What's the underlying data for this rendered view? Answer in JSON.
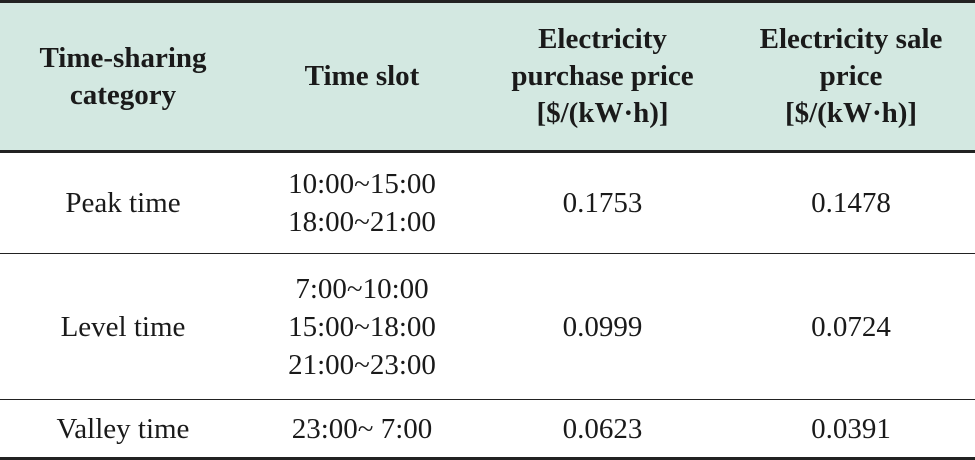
{
  "table": {
    "headers": [
      [
        "Time-sharing",
        "category"
      ],
      [
        "Time slot"
      ],
      [
        "Electricity",
        "purchase price",
        "[$/(kW·h)]"
      ],
      [
        "Electricity sale",
        "price",
        "[$/(kW·h)]"
      ]
    ],
    "rows": [
      {
        "category": "Peak time",
        "slots": [
          "10:00~15:00",
          "18:00~21:00"
        ],
        "purchase_price": "0.1753",
        "sale_price": "0.1478"
      },
      {
        "category": "Level time",
        "slots": [
          "7:00~10:00",
          "15:00~18:00",
          "21:00~23:00"
        ],
        "purchase_price": "0.0999",
        "sale_price": "0.0724"
      },
      {
        "category": "Valley time",
        "slots": [
          "23:00~ 7:00"
        ],
        "purchase_price": "0.0623",
        "sale_price": "0.0391"
      }
    ]
  }
}
